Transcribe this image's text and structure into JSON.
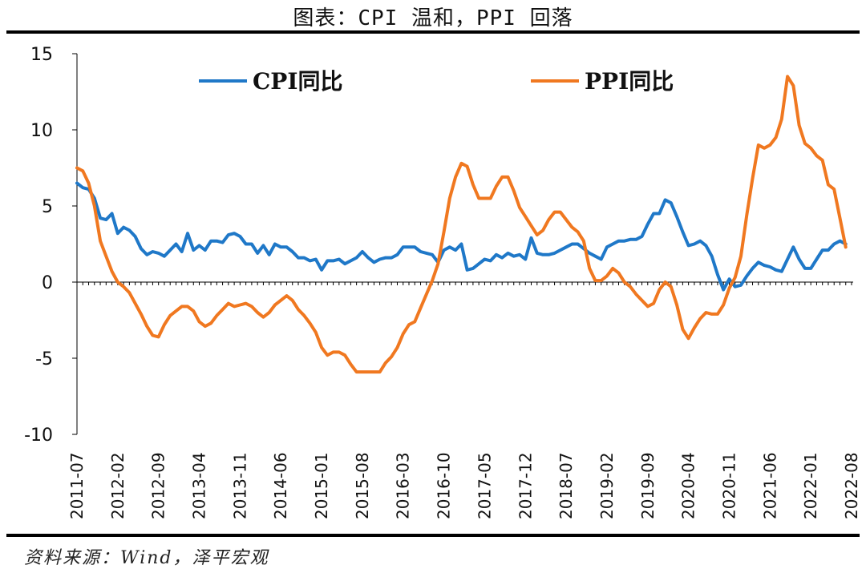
{
  "title": "图表：CPI 温和，PPI 回落",
  "source": "资料来源：Wind，泽平宏观",
  "colors": {
    "cpi": "#1f78c8",
    "ppi": "#f07820",
    "axis": "#000000"
  },
  "chart_data": {
    "type": "line",
    "title": "图表：CPI 温和，PPI 回落",
    "xlabel": "",
    "ylabel": "",
    "ylim": [
      -10,
      15
    ],
    "yticks": [
      -10,
      -5,
      0,
      5,
      10,
      15
    ],
    "xticks": [
      "2011-07",
      "2012-02",
      "2012-09",
      "2013-04",
      "2013-11",
      "2014-06",
      "2015-01",
      "2015-08",
      "2016-03",
      "2016-10",
      "2017-05",
      "2017-12",
      "2018-07",
      "2019-02",
      "2019-09",
      "2020-04",
      "2020-11",
      "2021-06",
      "2022-01",
      "2022-08"
    ],
    "legend": "top",
    "grid": false,
    "x_start": "2011-07",
    "x_end": "2022-08",
    "series": [
      {
        "name": "CPI同比",
        "color": "#1f78c8",
        "values": [
          6.5,
          6.2,
          6.1,
          5.5,
          4.2,
          4.1,
          4.5,
          3.2,
          3.6,
          3.4,
          3.0,
          2.2,
          1.8,
          2.0,
          1.9,
          1.7,
          2.1,
          2.5,
          2.0,
          3.2,
          2.1,
          2.4,
          2.1,
          2.7,
          2.7,
          2.6,
          3.1,
          3.2,
          3.0,
          2.5,
          2.5,
          1.9,
          2.4,
          1.8,
          2.5,
          2.3,
          2.3,
          2.0,
          1.6,
          1.6,
          1.4,
          1.5,
          0.8,
          1.4,
          1.4,
          1.5,
          1.2,
          1.4,
          1.6,
          2.0,
          1.6,
          1.3,
          1.5,
          1.6,
          1.6,
          1.8,
          2.3,
          2.3,
          2.3,
          2.0,
          1.9,
          1.8,
          1.3,
          2.1,
          2.3,
          2.1,
          2.5,
          0.8,
          0.9,
          1.2,
          1.5,
          1.4,
          1.8,
          1.6,
          1.9,
          1.7,
          1.8,
          1.5,
          2.9,
          1.9,
          1.8,
          1.8,
          1.9,
          2.1,
          2.3,
          2.5,
          2.5,
          2.2,
          1.9,
          1.7,
          1.5,
          2.3,
          2.5,
          2.7,
          2.7,
          2.8,
          2.8,
          3.0,
          3.8,
          4.5,
          4.5,
          5.4,
          5.2,
          4.3,
          3.3,
          2.4,
          2.5,
          2.7,
          2.4,
          1.7,
          0.5,
          -0.5,
          0.2,
          -0.3,
          -0.2,
          0.4,
          0.9,
          1.3,
          1.1,
          1.0,
          0.8,
          0.7,
          1.5,
          2.3,
          1.5,
          0.9,
          0.9,
          1.5,
          2.1,
          2.1,
          2.5,
          2.7,
          2.5
        ]
      },
      {
        "name": "PPI同比",
        "color": "#f07820",
        "values": [
          7.5,
          7.3,
          6.5,
          5.0,
          2.7,
          1.7,
          0.7,
          0.0,
          -0.3,
          -0.7,
          -1.4,
          -2.1,
          -2.9,
          -3.5,
          -3.6,
          -2.8,
          -2.2,
          -1.9,
          -1.6,
          -1.6,
          -1.9,
          -2.6,
          -2.9,
          -2.7,
          -2.2,
          -1.8,
          -1.4,
          -1.6,
          -1.5,
          -1.4,
          -1.6,
          -2.0,
          -2.3,
          -2.0,
          -1.5,
          -1.2,
          -0.9,
          -1.2,
          -1.8,
          -2.2,
          -2.7,
          -3.3,
          -4.3,
          -4.8,
          -4.6,
          -4.6,
          -4.8,
          -5.4,
          -5.9,
          -5.9,
          -5.9,
          -5.9,
          -5.9,
          -5.3,
          -4.9,
          -4.3,
          -3.4,
          -2.8,
          -2.6,
          -1.7,
          -0.8,
          0.1,
          1.2,
          3.3,
          5.5,
          6.9,
          7.8,
          7.6,
          6.4,
          5.5,
          5.5,
          5.5,
          6.3,
          6.9,
          6.9,
          6.0,
          4.9,
          4.3,
          3.7,
          3.1,
          3.4,
          4.1,
          4.6,
          4.6,
          4.1,
          3.6,
          3.3,
          2.7,
          0.9,
          0.1,
          0.1,
          0.4,
          0.9,
          0.6,
          0.0,
          -0.3,
          -0.8,
          -1.2,
          -1.6,
          -1.4,
          -0.5,
          0.0,
          -0.3,
          -1.5,
          -3.1,
          -3.7,
          -3.0,
          -2.4,
          -2.0,
          -2.1,
          -2.1,
          -1.5,
          -0.4,
          0.3,
          1.7,
          4.4,
          6.8,
          9.0,
          8.8,
          9.0,
          9.5,
          10.7,
          13.5,
          12.9,
          10.3,
          9.1,
          8.8,
          8.3,
          8.0,
          6.4,
          6.1,
          4.2,
          2.3
        ]
      }
    ]
  }
}
